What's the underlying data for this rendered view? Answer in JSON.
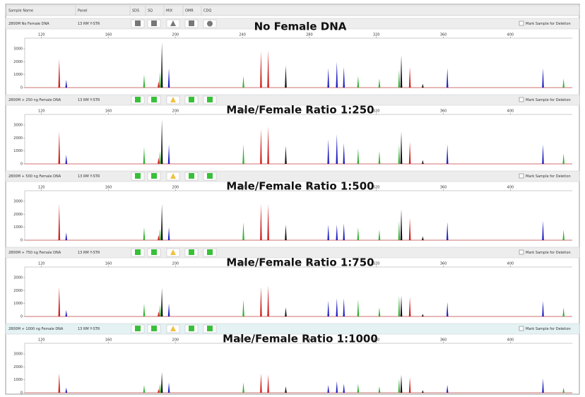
{
  "header": {
    "columns": [
      "Sample Name",
      "Panel",
      "SDS",
      "SQ",
      "MIX",
      "OMR",
      "CDQ"
    ]
  },
  "panels": [
    {
      "sample_name": "2800M No Female DNA",
      "panel": "13 RM Y-STR",
      "mark_label": "Mark Sample for Deletion",
      "chart_data": {
        "type": "peaks",
        "title": "No Female DNA",
        "xlim": [
          110,
          437
        ],
        "xticks": [
          120,
          160,
          200,
          240,
          280,
          320,
          360,
          400
        ],
        "ylim": [
          0,
          3600
        ],
        "yticks": [
          0,
          1000,
          2000,
          3000
        ],
        "series": [
          {
            "color": "#d02020",
            "x": [
              130.6,
              189.9,
              251.1,
              255.4,
              340.0
            ],
            "values": [
              2200,
              500,
              2800,
              2900,
              1600
            ]
          },
          {
            "color": "#30b030",
            "x": [
              181.3,
              190.8,
              240.6,
              309.1,
              321.8,
              333.6,
              431.8
            ],
            "values": [
              1000,
              1200,
              900,
              900,
              700,
              1400,
              700
            ]
          },
          {
            "color": "#2020c0",
            "x": [
              134.8,
              196.1,
              291.3,
              296.4,
              300.6,
              362.4,
              419.5
            ],
            "values": [
              600,
              1500,
              1500,
              2000,
              1600,
              1500,
              1500
            ]
          },
          {
            "color": "#111111",
            "x": [
              191.9,
              265.9,
              334.9,
              347.7
            ],
            "values": [
              3500,
              1700,
              2500,
              300
            ]
          }
        ]
      }
    },
    {
      "sample_name": "2800M + 250 ng Female DNA",
      "panel": "13 RM Y-STR",
      "mark_label": "Mark Sample for Deletion",
      "chart_data": {
        "type": "peaks",
        "title": "Male/Female Ratio 1:250",
        "xlim": [
          110,
          437
        ],
        "xticks": [
          120,
          160,
          200,
          240,
          280,
          320,
          360,
          400
        ],
        "ylim": [
          0,
          3600
        ],
        "yticks": [
          0,
          1000,
          2000,
          3000
        ],
        "series": [
          {
            "color": "#d02020",
            "x": [
              130.6,
              189.9,
              251.1,
              255.4,
              340.0
            ],
            "values": [
              2500,
              500,
              2700,
              2900,
              1700
            ]
          },
          {
            "color": "#30b030",
            "x": [
              181.3,
              190.8,
              240.6,
              309.1,
              321.8,
              333.6,
              431.8
            ],
            "values": [
              1300,
              1000,
              1500,
              1200,
              1000,
              1500,
              800
            ]
          },
          {
            "color": "#2020c0",
            "x": [
              134.8,
              196.1,
              291.3,
              296.4,
              300.6,
              362.4,
              419.5
            ],
            "values": [
              700,
              1500,
              1900,
              2300,
              1600,
              1500,
              1500
            ]
          },
          {
            "color": "#111111",
            "x": [
              191.9,
              265.9,
              334.9,
              347.7
            ],
            "values": [
              3400,
              1400,
              2500,
              300
            ]
          }
        ]
      }
    },
    {
      "sample_name": "2800M + 500 ng Female DNA",
      "panel": "13 RM Y-STR",
      "mark_label": "Mark Sample for Deletion",
      "chart_data": {
        "type": "peaks",
        "title": "Male/Female Ratio 1:500",
        "xlim": [
          110,
          437
        ],
        "xticks": [
          120,
          160,
          200,
          240,
          280,
          320,
          360,
          400
        ],
        "ylim": [
          0,
          3600
        ],
        "yticks": [
          0,
          1000,
          2000,
          3000
        ],
        "series": [
          {
            "color": "#d02020",
            "x": [
              130.6,
              189.9,
              251.1,
              255.4,
              340.0
            ],
            "values": [
              2800,
              400,
              2800,
              2800,
              1700
            ]
          },
          {
            "color": "#30b030",
            "x": [
              181.3,
              190.8,
              240.6,
              309.1,
              321.8,
              333.6,
              431.8
            ],
            "values": [
              1000,
              900,
              1400,
              1000,
              800,
              1500,
              800
            ]
          },
          {
            "color": "#2020c0",
            "x": [
              134.8,
              196.1,
              291.3,
              296.4,
              300.6,
              362.4,
              419.5
            ],
            "values": [
              600,
              1000,
              1200,
              1200,
              1300,
              1400,
              1500
            ]
          },
          {
            "color": "#111111",
            "x": [
              191.9,
              265.9,
              334.9,
              347.7
            ],
            "values": [
              2800,
              1200,
              2400,
              300
            ]
          }
        ]
      }
    },
    {
      "sample_name": "2800M + 750 ng Female DNA",
      "panel": "13 RM Y-STR",
      "mark_label": "Mark Sample for Deletion",
      "chart_data": {
        "type": "peaks",
        "title": "Male/Female Ratio 1:750",
        "xlim": [
          110,
          437
        ],
        "xticks": [
          120,
          160,
          200,
          240,
          280,
          320,
          360,
          400
        ],
        "ylim": [
          0,
          3600
        ],
        "yticks": [
          0,
          1000,
          2000,
          3000
        ],
        "series": [
          {
            "color": "#d02020",
            "x": [
              130.6,
              189.9,
              251.1,
              255.4,
              340.0
            ],
            "values": [
              2300,
              400,
              2300,
              2400,
              1500
            ]
          },
          {
            "color": "#30b030",
            "x": [
              181.3,
              190.8,
              240.6,
              309.1,
              321.8,
              333.6,
              431.8
            ],
            "values": [
              1000,
              900,
              1300,
              1300,
              700,
              1600,
              700
            ]
          },
          {
            "color": "#2020c0",
            "x": [
              134.8,
              196.1,
              291.3,
              296.4,
              300.6,
              362.4,
              419.5
            ],
            "values": [
              500,
              1000,
              1200,
              1400,
              1400,
              1100,
              1200
            ]
          },
          {
            "color": "#111111",
            "x": [
              191.9,
              265.9,
              334.9,
              347.7
            ],
            "values": [
              2200,
              700,
              1600,
              200
            ]
          }
        ]
      }
    },
    {
      "sample_name": "2800M + 1000 ng Female DNA",
      "panel": "13 RM Y-STR",
      "mark_label": "Mark Sample for Deletion",
      "chart_data": {
        "type": "peaks",
        "title": "Male/Female Ratio 1:1000",
        "xlim": [
          110,
          437
        ],
        "xticks": [
          120,
          160,
          200,
          240,
          280,
          320,
          360,
          400
        ],
        "ylim": [
          0,
          3600
        ],
        "yticks": [
          0,
          1000,
          2000,
          3000
        ],
        "series": [
          {
            "color": "#d02020",
            "x": [
              130.6,
              189.9,
              251.1,
              255.4,
              340.0
            ],
            "values": [
              1500,
              300,
              1500,
              1400,
              1200
            ]
          },
          {
            "color": "#30b030",
            "x": [
              181.3,
              190.8,
              240.6,
              309.1,
              321.8,
              333.6,
              431.8
            ],
            "values": [
              600,
              700,
              800,
              700,
              500,
              1100,
              400
            ]
          },
          {
            "color": "#2020c0",
            "x": [
              134.8,
              196.1,
              291.3,
              296.4,
              300.6,
              362.4,
              419.5
            ],
            "values": [
              400,
              800,
              600,
              900,
              700,
              600,
              1100
            ]
          },
          {
            "color": "#111111",
            "x": [
              191.9,
              265.9,
              334.9,
              347.7
            ],
            "values": [
              1600,
              500,
              1400,
              200
            ]
          }
        ]
      }
    }
  ]
}
